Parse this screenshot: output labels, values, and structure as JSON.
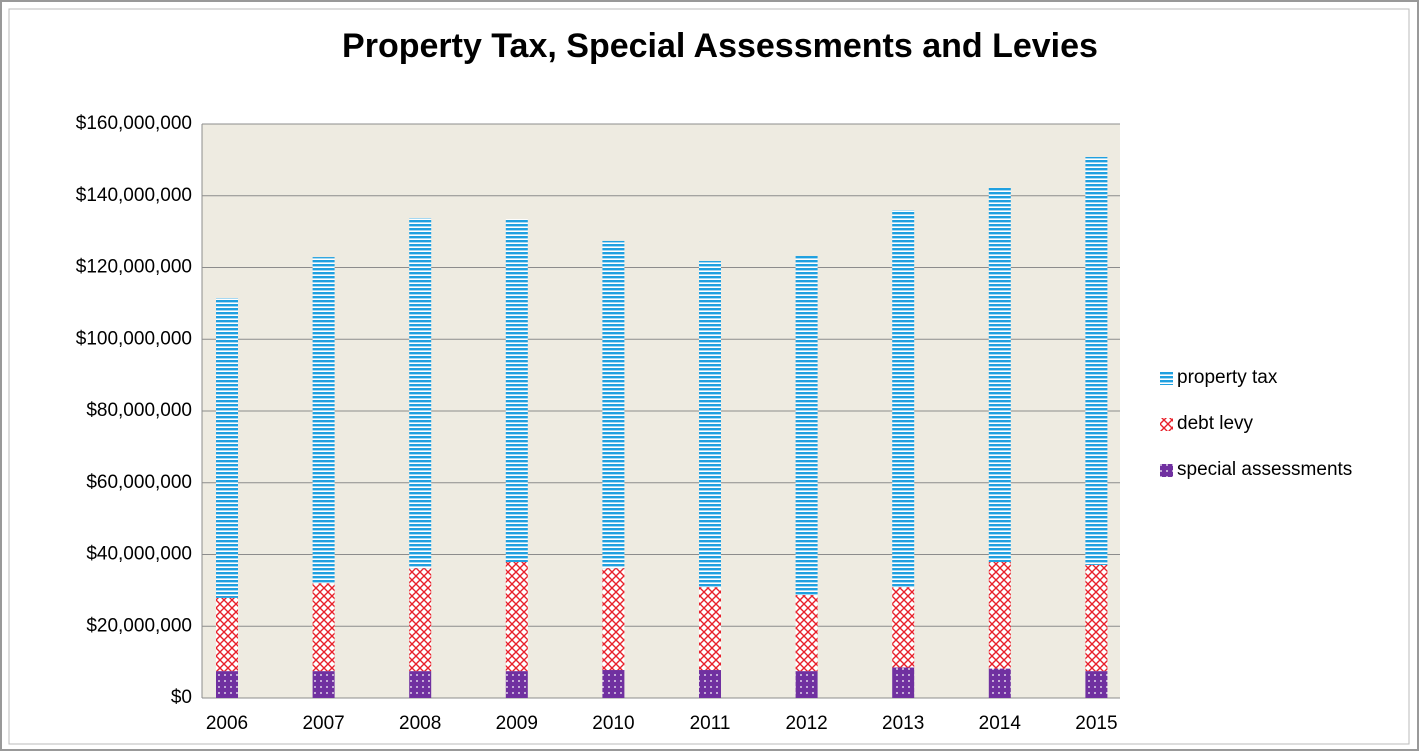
{
  "chart_data": {
    "type": "stacked_bar",
    "title": "Property Tax, Special Assessments and Levies",
    "categories": [
      "2006",
      "2007",
      "2008",
      "2009",
      "2010",
      "2011",
      "2012",
      "2013",
      "2014",
      "2015"
    ],
    "series": [
      {
        "name": "special assessments",
        "color": "#7030a0",
        "values": [
          7500000,
          7500000,
          7500000,
          7500000,
          7800000,
          7800000,
          7500000,
          8500000,
          8200000,
          7500000
        ]
      },
      {
        "name": "debt levy",
        "color": "#e8202a",
        "values": [
          20400000,
          24500000,
          28700000,
          30400000,
          28400000,
          23100000,
          21200000,
          22400000,
          29700000,
          29600000
        ]
      },
      {
        "name": "property tax",
        "color": "#1fa0e0",
        "values": [
          83600000,
          90900000,
          97600000,
          95600000,
          91200000,
          90900000,
          94500000,
          105100000,
          104300000,
          113700000
        ]
      }
    ],
    "ylim": [
      0,
      160000000
    ],
    "yticks": [
      {
        "value": 0,
        "label": "$0"
      },
      {
        "value": 20000000,
        "label": "$20,000,000"
      },
      {
        "value": 40000000,
        "label": "$40,000,000"
      },
      {
        "value": 60000000,
        "label": "$60,000,000"
      },
      {
        "value": 80000000,
        "label": "$80,000,000"
      },
      {
        "value": 100000000,
        "label": "$100,000,000"
      },
      {
        "value": 120000000,
        "label": "$120,000,000"
      },
      {
        "value": 140000000,
        "label": "$140,000,000"
      },
      {
        "value": 160000000,
        "label": "$160,000,000"
      }
    ],
    "grid": true,
    "legend": "right"
  }
}
